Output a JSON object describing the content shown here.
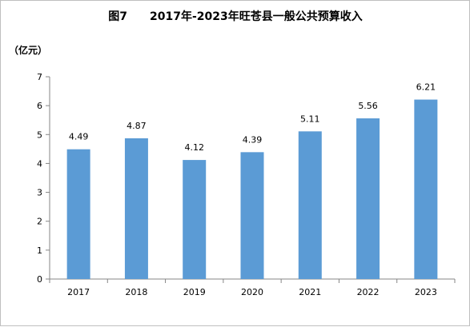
{
  "chart_data": {
    "type": "bar",
    "title": "图7　　2017年-2023年旺苍县一般公共预算收入",
    "ylabel": "（亿元）",
    "xlabel": "",
    "categories": [
      "2017",
      "2018",
      "2019",
      "2020",
      "2021",
      "2022",
      "2023"
    ],
    "values": [
      4.49,
      4.87,
      4.12,
      4.39,
      5.11,
      5.56,
      6.21
    ],
    "data_labels": [
      "4.49",
      "4.87",
      "4.12",
      "4.39",
      "5.11",
      "5.56",
      "6.21"
    ],
    "ylim": [
      0,
      7
    ],
    "yticks": [
      "0",
      "1",
      "2",
      "3",
      "4",
      "5",
      "6",
      "7"
    ],
    "grid": false,
    "legend": "none",
    "bar_color": "#5b9bd5",
    "axis_color": "#868686"
  }
}
